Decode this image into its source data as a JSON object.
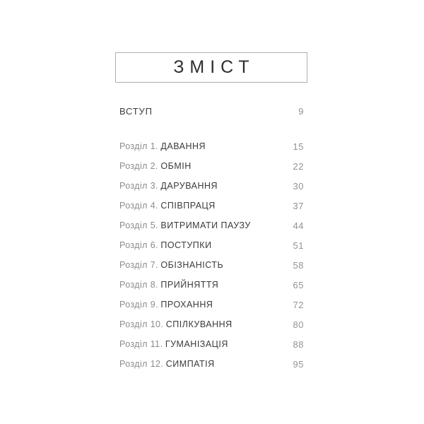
{
  "toc": {
    "title": "ЗМІСТ",
    "intro": {
      "label": "ВСТУП",
      "page": "9"
    },
    "entries": [
      {
        "prefix": "Розділ 1.",
        "title": "ДАВАННЯ",
        "page": "15"
      },
      {
        "prefix": "Розділ 2.",
        "title": "ОБМІН",
        "page": "22"
      },
      {
        "prefix": "Розділ 3.",
        "title": "ДАРУВАННЯ",
        "page": "30"
      },
      {
        "prefix": "Розділ 4.",
        "title": "СПІВПРАЦЯ",
        "page": "37"
      },
      {
        "prefix": "Розділ 5.",
        "title": "ВИТРИМАТИ ПАУЗУ",
        "page": "44"
      },
      {
        "prefix": "Розділ 6.",
        "title": "ПОСТУПКИ",
        "page": "51"
      },
      {
        "prefix": "Розділ 7.",
        "title": "ОБІЗНАНІСТЬ",
        "page": "58"
      },
      {
        "prefix": "Розділ 8.",
        "title": "ПРИЙНЯТТЯ",
        "page": "65"
      },
      {
        "prefix": "Розділ 9.",
        "title": "ПРОХАННЯ",
        "page": "72"
      },
      {
        "prefix": "Розділ 10.",
        "title": "СПІЛКУВАННЯ",
        "page": "80"
      },
      {
        "prefix": "Розділ 11.",
        "title": "ГУМАНІЗАЦІЯ",
        "page": "88"
      },
      {
        "prefix": "Розділ 12.",
        "title": "СИМПАТІЯ",
        "page": "95"
      }
    ]
  }
}
